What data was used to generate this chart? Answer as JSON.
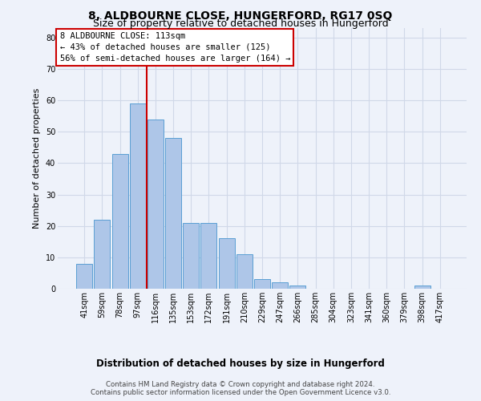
{
  "title": "8, ALDBOURNE CLOSE, HUNGERFORD, RG17 0SQ",
  "subtitle": "Size of property relative to detached houses in Hungerford",
  "xlabel_bottom": "Distribution of detached houses by size in Hungerford",
  "ylabel": "Number of detached properties",
  "categories": [
    "41sqm",
    "59sqm",
    "78sqm",
    "97sqm",
    "116sqm",
    "135sqm",
    "153sqm",
    "172sqm",
    "191sqm",
    "210sqm",
    "229sqm",
    "247sqm",
    "266sqm",
    "285sqm",
    "304sqm",
    "323sqm",
    "341sqm",
    "360sqm",
    "379sqm",
    "398sqm",
    "417sqm"
  ],
  "values": [
    8,
    22,
    43,
    59,
    54,
    48,
    21,
    21,
    16,
    11,
    3,
    2,
    1,
    0,
    0,
    0,
    0,
    0,
    0,
    1,
    0
  ],
  "bar_color": "#aec6e8",
  "bar_edge_color": "#5a9fd4",
  "vline_x": 3.5,
  "vline_color": "#cc0000",
  "annotation_text": "8 ALDBOURNE CLOSE: 113sqm\n← 43% of detached houses are smaller (125)\n56% of semi-detached houses are larger (164) →",
  "annotation_box_color": "#ffffff",
  "annotation_box_edge_color": "#cc0000",
  "ylim": [
    0,
    83
  ],
  "yticks": [
    0,
    10,
    20,
    30,
    40,
    50,
    60,
    70,
    80
  ],
  "grid_color": "#d0d8e8",
  "background_color": "#eef2fa",
  "footer": "Contains HM Land Registry data © Crown copyright and database right 2024.\nContains public sector information licensed under the Open Government Licence v3.0.",
  "title_fontsize": 10,
  "subtitle_fontsize": 9,
  "ylabel_fontsize": 8,
  "tick_fontsize": 7,
  "annotation_fontsize": 7.5,
  "xlabel_bottom_fontsize": 8.5
}
